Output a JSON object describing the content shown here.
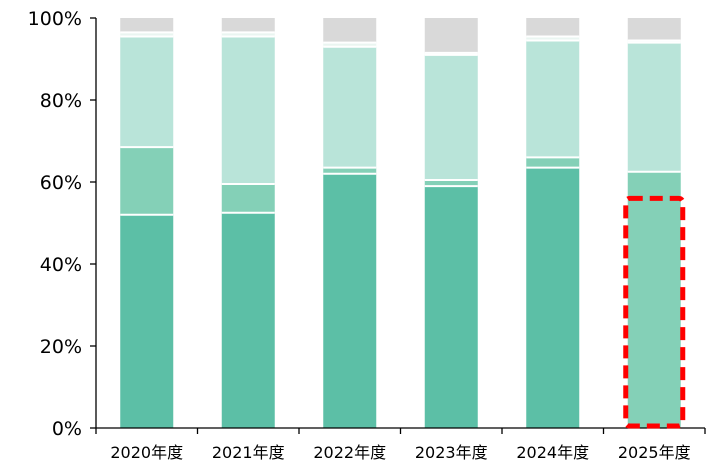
{
  "chart_data": {
    "type": "bar",
    "stacked": true,
    "categories": [
      "2020年度",
      "2021年度",
      "2022年度",
      "2023年度",
      "2024年度",
      "2025年度"
    ],
    "series": [
      {
        "values": [
          52,
          52.5,
          62,
          59,
          63.5,
          0
        ],
        "color": "#5cbfa6"
      },
      {
        "values": [
          16.5,
          7,
          1.5,
          1.5,
          2.5,
          62.5
        ],
        "color": "#84d0b7"
      },
      {
        "values": [
          27,
          36,
          29.5,
          30.5,
          28.5,
          31.5
        ],
        "color": "#b9e4d9"
      },
      {
        "values": [
          1,
          1,
          1,
          0.5,
          1,
          0.5
        ],
        "color": "#eaf5f1"
      },
      {
        "values": [
          3.5,
          3.5,
          6,
          8.5,
          4.5,
          5.5
        ],
        "color": "#d9d9d9"
      }
    ],
    "highlight": {
      "category": "2025年度",
      "value_from": 0,
      "value_to": 56,
      "color": "#ff0000",
      "style": "dashed"
    },
    "yticks": [
      "0%",
      "20%",
      "40%",
      "60%",
      "80%",
      "100%"
    ],
    "ylim": [
      0,
      100
    ],
    "grid": false,
    "legend": "none"
  }
}
